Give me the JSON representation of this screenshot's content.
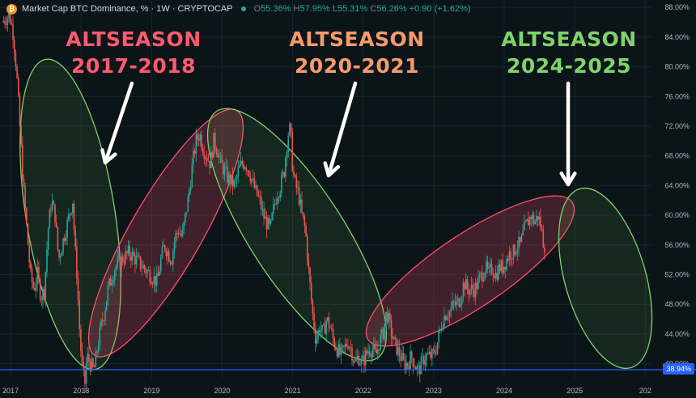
{
  "header": {
    "logo_letter": "₿",
    "title": "Market Cap BTC Dominance, % · 1W · CRYPTOCAP",
    "ohlc": {
      "o_label": "O",
      "o": "55.36%",
      "h_label": "H",
      "h": "57.95%",
      "l_label": "L",
      "l": "55.31%",
      "c_label": "C",
      "c": "56.26%",
      "change": "+0.90 (+1.62%)"
    }
  },
  "current_price_tag": "38.94%",
  "colors": {
    "background": "#0b1418",
    "up": "#26a69a",
    "down": "#ef5350",
    "green_ellipse": "#7fd36b",
    "red_ellipse": "#ff4d6d",
    "label_2017": "#ff5a6e",
    "label_2020": "#f79a6a",
    "label_2024": "#7fd36b"
  },
  "annotations": [
    {
      "line1": "ALTSEASON",
      "line2": "2017-2018",
      "color": "#ff5a6e"
    },
    {
      "line1": "ALTSEASON",
      "line2": "2020-2021",
      "color": "#f79a6a"
    },
    {
      "line1": "ALTSEASON",
      "line2": "2024-2025",
      "color": "#7fd36b"
    }
  ],
  "chart_data": {
    "type": "candlestick",
    "title": "Market Cap BTC Dominance, % · 1W · CRYPTOCAP",
    "x_ticks": [
      "2017",
      "2018",
      "2019",
      "2020",
      "2021",
      "2022",
      "2023",
      "2024",
      "2025",
      "202"
    ],
    "y_ticks": [
      "88.00%",
      "84.00%",
      "80.00%",
      "76.00%",
      "72.00%",
      "68.00%",
      "64.00%",
      "60.00%",
      "56.00%",
      "52.00%",
      "48.00%",
      "44.00%",
      "40.00%"
    ],
    "ylim": [
      38,
      89
    ],
    "xlim": [
      2016.85,
      2026.1
    ],
    "grid": true,
    "horizontal_line": 39.2,
    "series_points": [
      [
        2016.9,
        86
      ],
      [
        2017.0,
        87
      ],
      [
        2017.05,
        85
      ],
      [
        2017.1,
        80
      ],
      [
        2017.15,
        72
      ],
      [
        2017.2,
        64
      ],
      [
        2017.25,
        58
      ],
      [
        2017.3,
        52
      ],
      [
        2017.35,
        50
      ],
      [
        2017.4,
        52
      ],
      [
        2017.45,
        49
      ],
      [
        2017.5,
        50
      ],
      [
        2017.55,
        58
      ],
      [
        2017.6,
        62
      ],
      [
        2017.65,
        60
      ],
      [
        2017.7,
        54
      ],
      [
        2017.75,
        56
      ],
      [
        2017.8,
        58
      ],
      [
        2017.85,
        60
      ],
      [
        2017.9,
        62
      ],
      [
        2017.93,
        56
      ],
      [
        2017.96,
        52
      ],
      [
        2018.0,
        44
      ],
      [
        2018.03,
        40
      ],
      [
        2018.07,
        37
      ],
      [
        2018.1,
        41
      ],
      [
        2018.15,
        40
      ],
      [
        2018.2,
        39
      ],
      [
        2018.25,
        42
      ],
      [
        2018.3,
        45
      ],
      [
        2018.35,
        47
      ],
      [
        2018.4,
        50
      ],
      [
        2018.5,
        53
      ],
      [
        2018.6,
        54
      ],
      [
        2018.7,
        55
      ],
      [
        2018.8,
        54
      ],
      [
        2018.9,
        53
      ],
      [
        2019.0,
        52
      ],
      [
        2019.1,
        51
      ],
      [
        2019.15,
        54
      ],
      [
        2019.2,
        56
      ],
      [
        2019.25,
        55
      ],
      [
        2019.3,
        54
      ],
      [
        2019.35,
        57
      ],
      [
        2019.4,
        58
      ],
      [
        2019.45,
        57
      ],
      [
        2019.5,
        60
      ],
      [
        2019.55,
        63
      ],
      [
        2019.6,
        67
      ],
      [
        2019.65,
        70
      ],
      [
        2019.7,
        71
      ],
      [
        2019.75,
        69
      ],
      [
        2019.8,
        68
      ],
      [
        2019.85,
        67
      ],
      [
        2019.9,
        70
      ],
      [
        2019.95,
        69
      ],
      [
        2020.0,
        67
      ],
      [
        2020.1,
        65
      ],
      [
        2020.2,
        64
      ],
      [
        2020.25,
        66
      ],
      [
        2020.3,
        67
      ],
      [
        2020.35,
        67
      ],
      [
        2020.4,
        66
      ],
      [
        2020.5,
        63
      ],
      [
        2020.55,
        62
      ],
      [
        2020.6,
        60
      ],
      [
        2020.65,
        59
      ],
      [
        2020.7,
        58
      ],
      [
        2020.75,
        61
      ],
      [
        2020.8,
        63
      ],
      [
        2020.85,
        64
      ],
      [
        2020.9,
        66
      ],
      [
        2020.93,
        69
      ],
      [
        2020.97,
        72
      ],
      [
        2021.0,
        70
      ],
      [
        2021.02,
        66
      ],
      [
        2021.06,
        64
      ],
      [
        2021.1,
        63
      ],
      [
        2021.15,
        60
      ],
      [
        2021.2,
        58
      ],
      [
        2021.25,
        52
      ],
      [
        2021.3,
        47
      ],
      [
        2021.35,
        43
      ],
      [
        2021.4,
        45
      ],
      [
        2021.45,
        44
      ],
      [
        2021.5,
        46
      ],
      [
        2021.55,
        45
      ],
      [
        2021.6,
        43
      ],
      [
        2021.65,
        42
      ],
      [
        2021.7,
        41
      ],
      [
        2021.75,
        42
      ],
      [
        2021.8,
        43
      ],
      [
        2021.85,
        42
      ],
      [
        2021.9,
        40
      ],
      [
        2021.95,
        41
      ],
      [
        2022.0,
        40
      ],
      [
        2022.05,
        41
      ],
      [
        2022.1,
        42
      ],
      [
        2022.15,
        42
      ],
      [
        2022.2,
        41
      ],
      [
        2022.25,
        43
      ],
      [
        2022.3,
        44
      ],
      [
        2022.35,
        47
      ],
      [
        2022.4,
        45
      ],
      [
        2022.45,
        43
      ],
      [
        2022.5,
        42
      ],
      [
        2022.55,
        41
      ],
      [
        2022.6,
        40
      ],
      [
        2022.65,
        40
      ],
      [
        2022.7,
        41
      ],
      [
        2022.75,
        40
      ],
      [
        2022.8,
        39
      ],
      [
        2022.85,
        40
      ],
      [
        2022.9,
        41
      ],
      [
        2022.95,
        41
      ],
      [
        2023.0,
        41
      ],
      [
        2023.05,
        42
      ],
      [
        2023.1,
        44
      ],
      [
        2023.15,
        46
      ],
      [
        2023.2,
        47
      ],
      [
        2023.25,
        47
      ],
      [
        2023.3,
        48
      ],
      [
        2023.35,
        48
      ],
      [
        2023.4,
        49
      ],
      [
        2023.45,
        51
      ],
      [
        2023.5,
        50
      ],
      [
        2023.55,
        50
      ],
      [
        2023.6,
        50
      ],
      [
        2023.65,
        51
      ],
      [
        2023.7,
        52
      ],
      [
        2023.75,
        53
      ],
      [
        2023.8,
        52
      ],
      [
        2023.85,
        53
      ],
      [
        2023.9,
        52
      ],
      [
        2023.95,
        53
      ],
      [
        2024.0,
        53
      ],
      [
        2024.05,
        54
      ],
      [
        2024.1,
        55
      ],
      [
        2024.15,
        55
      ],
      [
        2024.2,
        56
      ],
      [
        2024.25,
        56
      ],
      [
        2024.3,
        58
      ],
      [
        2024.35,
        59
      ],
      [
        2024.4,
        60
      ],
      [
        2024.45,
        59
      ],
      [
        2024.5,
        60
      ],
      [
        2024.55,
        58
      ],
      [
        2024.58,
        56
      ]
    ]
  }
}
